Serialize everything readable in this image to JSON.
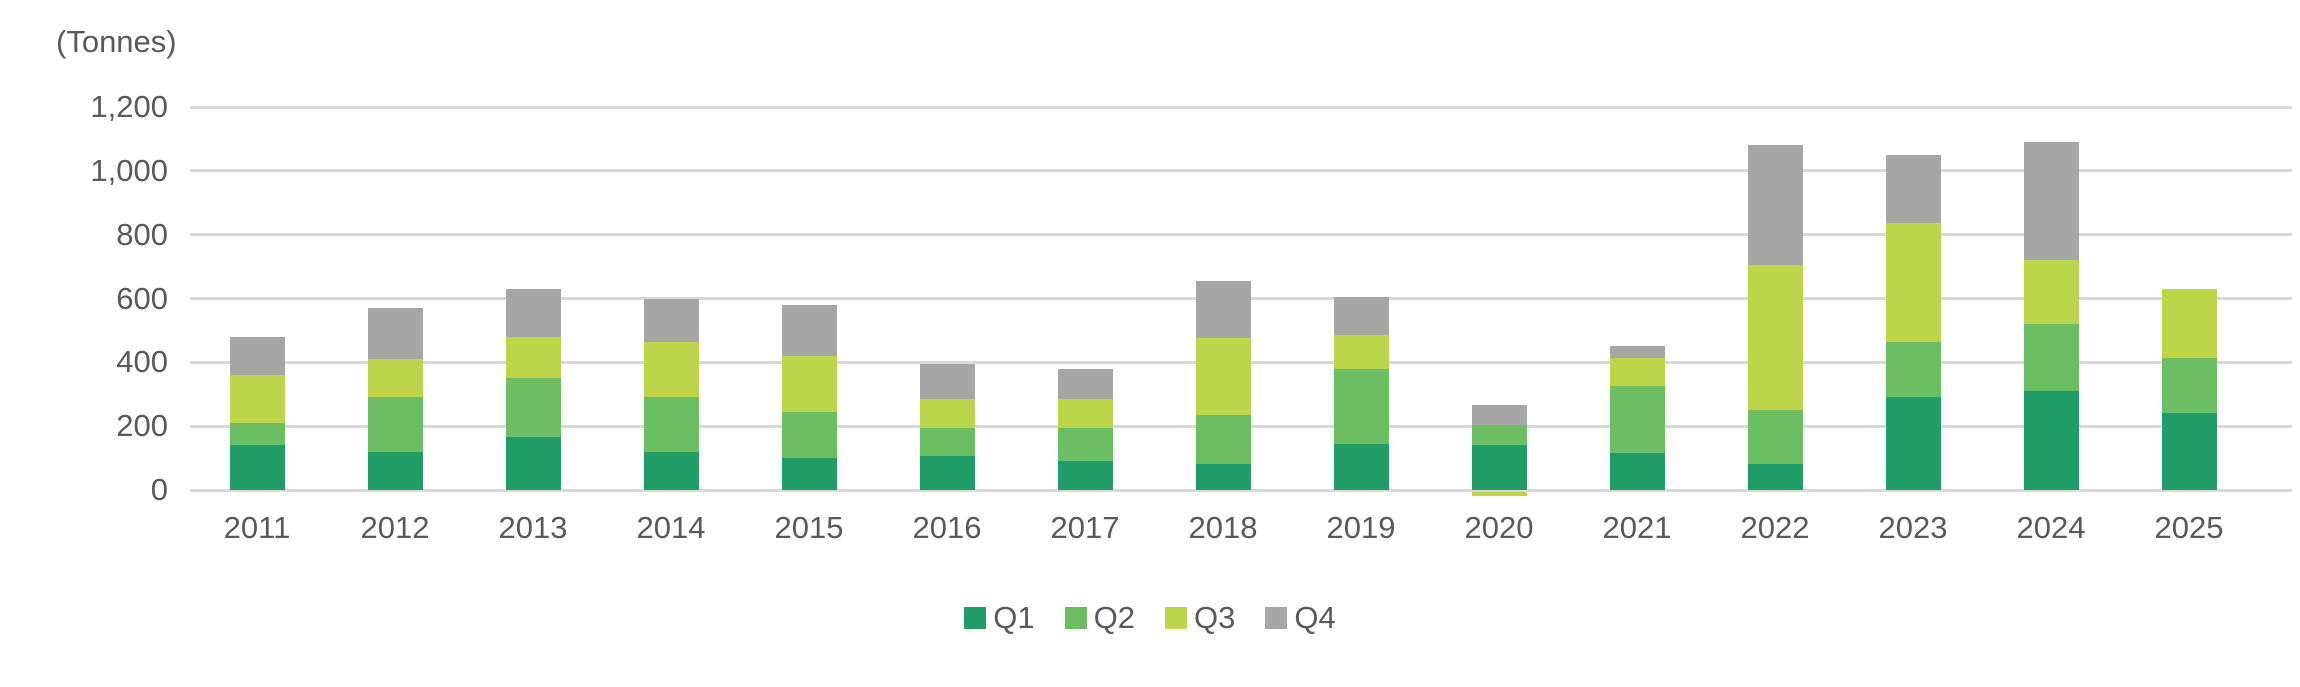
{
  "chart_data": {
    "type": "bar",
    "stacked": true,
    "unit_label": "(Tonnes)",
    "categories": [
      "2011",
      "2012",
      "2013",
      "2014",
      "2015",
      "2016",
      "2017",
      "2018",
      "2019",
      "2020",
      "2021",
      "2022",
      "2023",
      "2024",
      "2025"
    ],
    "series": [
      {
        "name": "Q1",
        "color": "#219e68",
        "values": [
          140,
          120,
          165,
          120,
          100,
          105,
          90,
          80,
          145,
          140,
          115,
          80,
          290,
          310,
          240
        ]
      },
      {
        "name": "Q2",
        "color": "#6cbe63",
        "values": [
          70,
          170,
          185,
          170,
          145,
          90,
          105,
          155,
          235,
          65,
          210,
          170,
          175,
          210,
          175
        ]
      },
      {
        "name": "Q3",
        "color": "#bcd54a",
        "values": [
          150,
          120,
          130,
          175,
          175,
          90,
          90,
          240,
          105,
          -15,
          90,
          455,
          370,
          200,
          215
        ]
      },
      {
        "name": "Q4",
        "color": "#a6a6a6",
        "values": [
          120,
          160,
          150,
          135,
          160,
          110,
          95,
          180,
          120,
          60,
          35,
          375,
          215,
          370,
          0
        ]
      }
    ],
    "totals_approx": [
      480,
      570,
      630,
      600,
      580,
      395,
      380,
      655,
      605,
      250,
      450,
      1080,
      1050,
      1090,
      630
    ],
    "y_axis": {
      "min": 0,
      "max": 1200,
      "step": 200,
      "tick_labels": [
        "0",
        "200",
        "400",
        "600",
        "800",
        "1,000",
        "1,200"
      ]
    },
    "x_axis_label": "",
    "y_axis_label": "(Tonnes)",
    "legend": [
      "Q1",
      "Q2",
      "Q3",
      "Q4"
    ],
    "legend_position": "bottom",
    "grid": true
  },
  "styles": {
    "background": "#ffffff",
    "gridline_color": "#d9d9d9",
    "text_color": "#595959"
  }
}
